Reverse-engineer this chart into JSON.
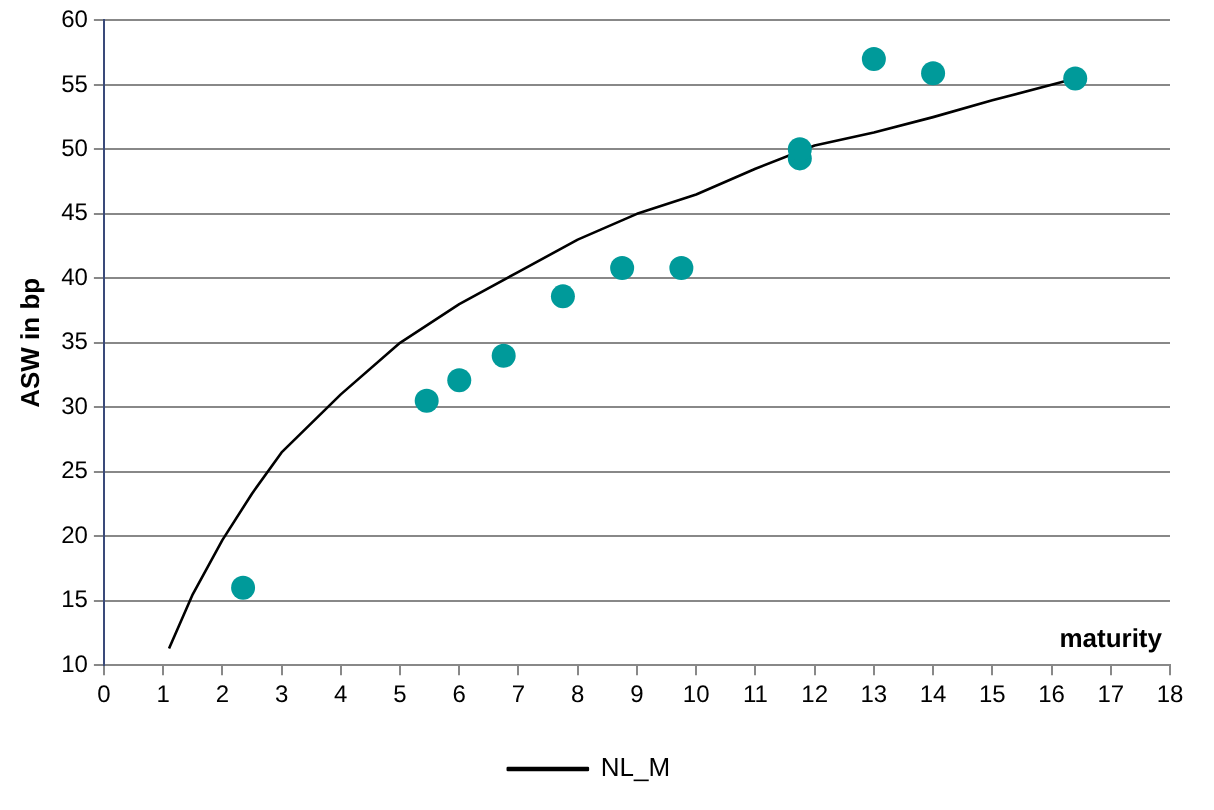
{
  "chart_data": {
    "type": "scatter",
    "xlabel": "maturity",
    "ylabel": "ASW in bp",
    "series": [
      {
        "color": "#009a9a",
        "marker": "circle",
        "x": [
          2.35,
          5.45,
          6.0,
          6.75,
          7.75,
          8.75,
          9.75,
          11.75,
          11.75,
          13.0,
          14.0,
          16.4
        ],
        "values": [
          16,
          30.5,
          32.1,
          34,
          38.6,
          40.8,
          40.8,
          49.3,
          50,
          57,
          55.9,
          55.5
        ]
      },
      {
        "type": "line",
        "name": "NL_M",
        "color": "#000000",
        "marker": "none",
        "line_style": "solid",
        "x": [
          1.1,
          1.5,
          2,
          2.5,
          3,
          4,
          5,
          6,
          7,
          8,
          9,
          10,
          11,
          12,
          13,
          14,
          15,
          16.4
        ],
        "values": [
          11.3,
          15.5,
          19.7,
          23.3,
          26.5,
          31,
          35,
          38,
          40.5,
          43,
          45,
          46.5,
          48.5,
          50.3,
          51.3,
          52.5,
          53.8,
          55.5
        ]
      }
    ],
    "xlim": [
      0,
      18
    ],
    "xticks": [
      0,
      1,
      2,
      3,
      4,
      5,
      6,
      7,
      8,
      9,
      10,
      11,
      12,
      13,
      14,
      15,
      16,
      17,
      18
    ],
    "ylim": [
      10,
      60
    ],
    "yticks": [
      10,
      15,
      20,
      25,
      30,
      35,
      40,
      45,
      50,
      55,
      60
    ],
    "grid": "y",
    "legend": "bottom"
  }
}
